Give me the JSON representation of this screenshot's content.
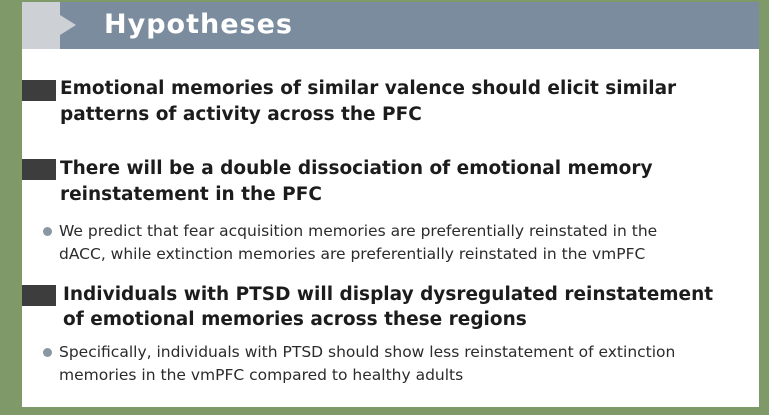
{
  "header": {
    "title": "Hypotheses"
  },
  "hypotheses": [
    {
      "line1": "Emotional memories of similar valence should elicit similar",
      "line2": "patterns of activity across the PFC"
    },
    {
      "line1": "There will be a double dissociation of emotional memory",
      "line2": "reinstatement in the PFC",
      "sub_line1": "We predict that fear acquisition memories are preferentially reinstated in the",
      "sub_line2": "dACC, while extinction memories are preferentially reinstated in the vmPFC"
    },
    {
      "line1": "Individuals with PTSD will display dysregulated reinstatement",
      "line2": "of emotional memories across these regions",
      "sub_line1": "Specifically, individuals with PTSD should show less reinstatement of extinction",
      "sub_line2": "memories in the vmPFC compared to healthy adults"
    }
  ],
  "colors": {
    "background": "#7f9a68",
    "header_bar": "#7b8c9e",
    "header_tab": "#cdd0d4",
    "bullet_square": "#3d3d3d",
    "sub_dot": "#8b96a3"
  }
}
